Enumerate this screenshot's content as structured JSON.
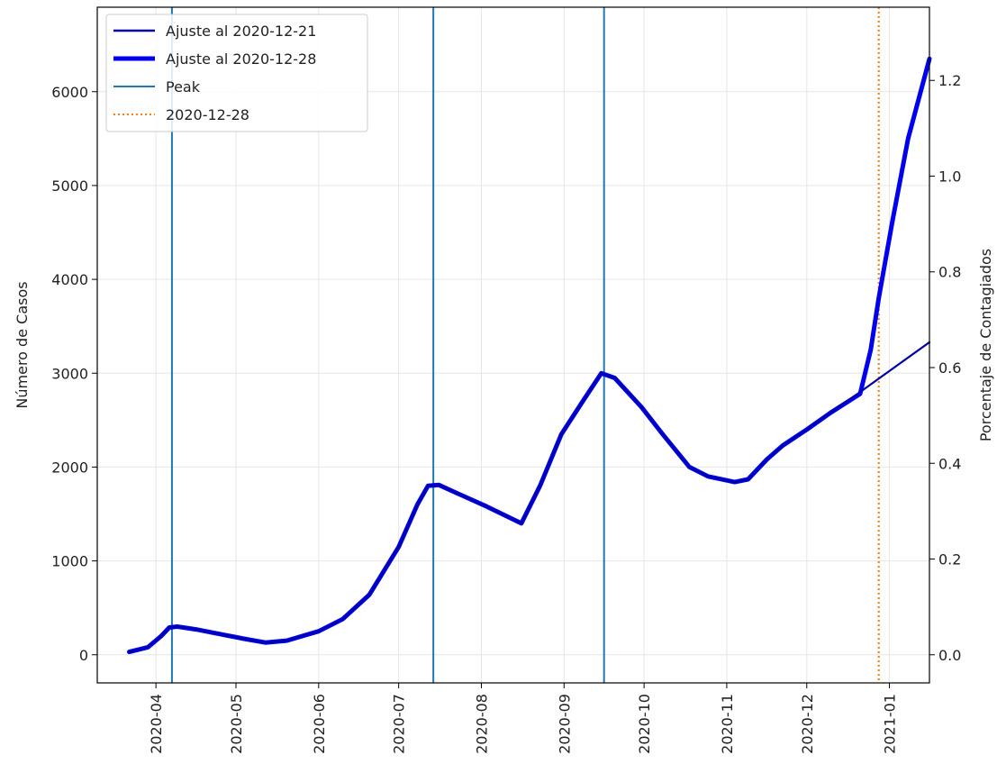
{
  "chart_data": {
    "type": "line",
    "title": "",
    "ylabel": "Número de Casos",
    "ylabel_right": "Porcentaje de Contagiados",
    "xlabel": "",
    "x_axis_type": "date",
    "xlim": [
      "2020-03-10",
      "2021-01-16"
    ],
    "ylim": [
      -300,
      6900
    ],
    "ylim_right": [
      -0.0588,
      1.3529
    ],
    "grid": true,
    "legend_position": "upper-left",
    "x_ticks": [
      "2020-04",
      "2020-05",
      "2020-06",
      "2020-07",
      "2020-08",
      "2020-09",
      "2020-10",
      "2020-11",
      "2020-12",
      "2021-01"
    ],
    "y_ticks": [
      "0",
      "1000",
      "2000",
      "3000",
      "4000",
      "5000",
      "6000"
    ],
    "y_ticks_right": [
      "0.0",
      "0.2",
      "0.4",
      "0.6",
      "0.8",
      "1.0",
      "1.2"
    ],
    "series": [
      {
        "name": "Ajuste al 2020-12-21",
        "color": "#0000aa",
        "style": "solid-thin",
        "points": [
          [
            "2020-03-22",
            30
          ],
          [
            "2020-03-29",
            80
          ],
          [
            "2020-04-03",
            200
          ],
          [
            "2020-04-06",
            290
          ],
          [
            "2020-04-09",
            300
          ],
          [
            "2020-04-16",
            270
          ],
          [
            "2020-04-25",
            220
          ],
          [
            "2020-05-04",
            170
          ],
          [
            "2020-05-12",
            130
          ],
          [
            "2020-05-20",
            150
          ],
          [
            "2020-06-01",
            250
          ],
          [
            "2020-06-10",
            380
          ],
          [
            "2020-06-20",
            640
          ],
          [
            "2020-07-01",
            1150
          ],
          [
            "2020-07-08",
            1600
          ],
          [
            "2020-07-12",
            1800
          ],
          [
            "2020-07-16",
            1810
          ],
          [
            "2020-07-23",
            1720
          ],
          [
            "2020-08-03",
            1580
          ],
          [
            "2020-08-16",
            1400
          ],
          [
            "2020-08-23",
            1800
          ],
          [
            "2020-08-31",
            2350
          ],
          [
            "2020-09-08",
            2700
          ],
          [
            "2020-09-15",
            3000
          ],
          [
            "2020-09-20",
            2950
          ],
          [
            "2020-09-30",
            2640
          ],
          [
            "2020-10-08",
            2350
          ],
          [
            "2020-10-18",
            2000
          ],
          [
            "2020-10-25",
            1900
          ],
          [
            "2020-11-04",
            1840
          ],
          [
            "2020-11-09",
            1870
          ],
          [
            "2020-11-16",
            2080
          ],
          [
            "2020-11-22",
            2230
          ],
          [
            "2020-12-01",
            2400
          ],
          [
            "2020-12-10",
            2580
          ],
          [
            "2020-12-21",
            2800
          ],
          [
            "2021-01-16",
            3330
          ]
        ]
      },
      {
        "name": "Ajuste al 2020-12-28",
        "color": "#0000ee",
        "style": "solid-thick",
        "points": [
          [
            "2020-03-22",
            30
          ],
          [
            "2020-03-29",
            80
          ],
          [
            "2020-04-03",
            200
          ],
          [
            "2020-04-06",
            290
          ],
          [
            "2020-04-09",
            300
          ],
          [
            "2020-04-16",
            270
          ],
          [
            "2020-04-25",
            220
          ],
          [
            "2020-05-04",
            170
          ],
          [
            "2020-05-12",
            130
          ],
          [
            "2020-05-20",
            150
          ],
          [
            "2020-06-01",
            250
          ],
          [
            "2020-06-10",
            380
          ],
          [
            "2020-06-20",
            640
          ],
          [
            "2020-07-01",
            1150
          ],
          [
            "2020-07-08",
            1600
          ],
          [
            "2020-07-12",
            1800
          ],
          [
            "2020-07-16",
            1810
          ],
          [
            "2020-07-23",
            1720
          ],
          [
            "2020-08-03",
            1580
          ],
          [
            "2020-08-16",
            1400
          ],
          [
            "2020-08-23",
            1800
          ],
          [
            "2020-08-31",
            2350
          ],
          [
            "2020-09-08",
            2700
          ],
          [
            "2020-09-15",
            3000
          ],
          [
            "2020-09-20",
            2950
          ],
          [
            "2020-09-30",
            2640
          ],
          [
            "2020-10-08",
            2350
          ],
          [
            "2020-10-18",
            2000
          ],
          [
            "2020-10-25",
            1900
          ],
          [
            "2020-11-04",
            1840
          ],
          [
            "2020-11-09",
            1870
          ],
          [
            "2020-11-16",
            2080
          ],
          [
            "2020-11-22",
            2230
          ],
          [
            "2020-12-01",
            2400
          ],
          [
            "2020-12-10",
            2580
          ],
          [
            "2020-12-21",
            2780
          ],
          [
            "2020-12-25",
            3250
          ],
          [
            "2020-12-28",
            3800
          ],
          [
            "2021-01-02",
            4600
          ],
          [
            "2021-01-08",
            5500
          ],
          [
            "2021-01-16",
            6350
          ]
        ]
      }
    ],
    "vertical_lines": [
      {
        "name": "Peak",
        "color": "#1f77b4",
        "style": "solid",
        "x": [
          "2020-04-07",
          "2020-07-14",
          "2020-09-16"
        ]
      },
      {
        "name": "2020-12-28",
        "color": "#ff7f0e",
        "style": "dotted",
        "x": [
          "2020-12-28"
        ]
      }
    ]
  }
}
